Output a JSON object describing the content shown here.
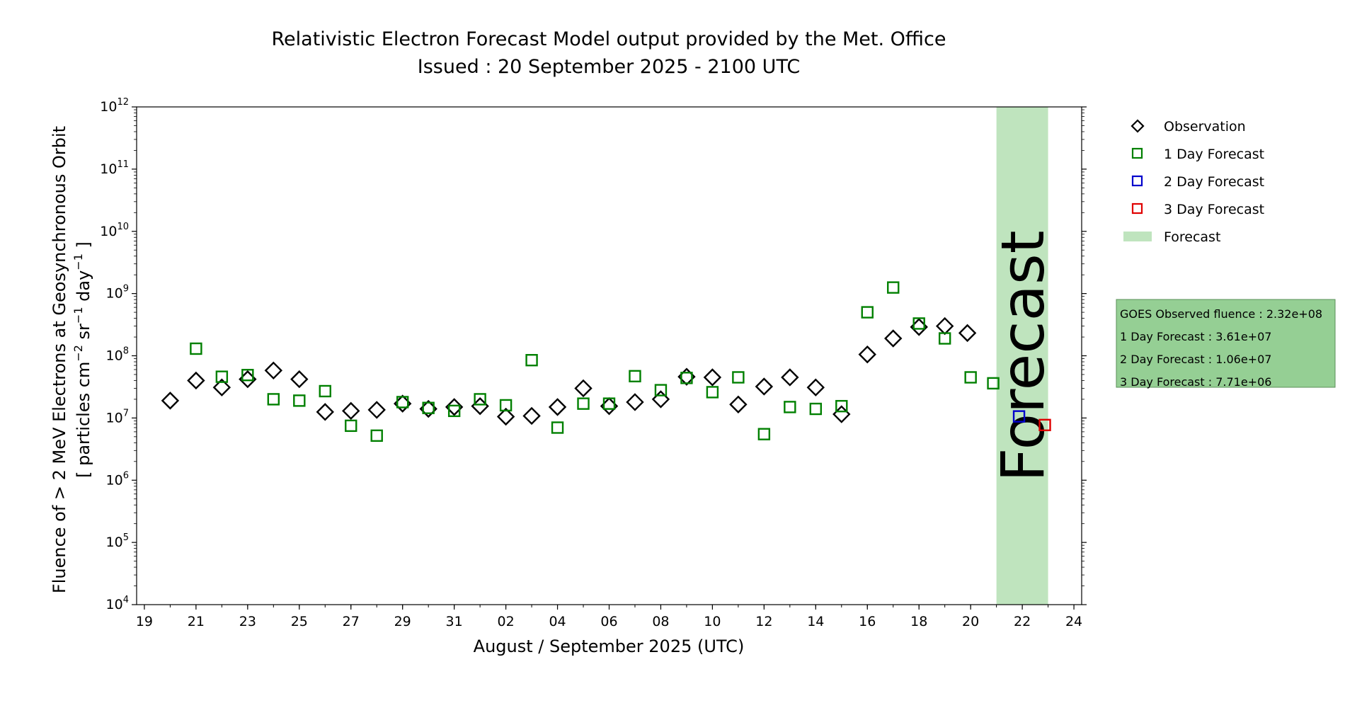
{
  "chart_data": {
    "type": "scatter",
    "title": "Relativistic Electron Forecast Model output provided by the Met. Office",
    "subtitle": "Issued : 20 September 2025 - 2100 UTC",
    "xlabel": "August / September 2025 (UTC)",
    "ylabel_line1": "Fluence of > 2 MeV Electrons at Geosynchronous Orbit",
    "ylabel_line2_parts": [
      "[ particles cm",
      "−2",
      " sr",
      "−1",
      " day",
      "−1",
      " ]"
    ],
    "y_scale": "log",
    "ylim": [
      10000,
      1000000000000
    ],
    "xlim": [
      "2025-08-18T16:48",
      "2025-09-24T07:12"
    ],
    "grid": false,
    "legend_position": "right",
    "x_ticks": [
      {
        "date": "2025-08-19",
        "label": "19"
      },
      {
        "date": "2025-08-21",
        "label": "21"
      },
      {
        "date": "2025-08-23",
        "label": "23"
      },
      {
        "date": "2025-08-25",
        "label": "25"
      },
      {
        "date": "2025-08-27",
        "label": "27"
      },
      {
        "date": "2025-08-29",
        "label": "29"
      },
      {
        "date": "2025-08-31",
        "label": "31"
      },
      {
        "date": "2025-09-02",
        "label": "02"
      },
      {
        "date": "2025-09-04",
        "label": "04"
      },
      {
        "date": "2025-09-06",
        "label": "06"
      },
      {
        "date": "2025-09-08",
        "label": "08"
      },
      {
        "date": "2025-09-10",
        "label": "10"
      },
      {
        "date": "2025-09-12",
        "label": "12"
      },
      {
        "date": "2025-09-14",
        "label": "14"
      },
      {
        "date": "2025-09-16",
        "label": "16"
      },
      {
        "date": "2025-09-18",
        "label": "18"
      },
      {
        "date": "2025-09-20",
        "label": "20"
      },
      {
        "date": "2025-09-22",
        "label": "22"
      },
      {
        "date": "2025-09-24",
        "label": "24"
      }
    ],
    "y_ticks": [
      {
        "value": 10000,
        "base": "10",
        "exp": "4"
      },
      {
        "value": 100000,
        "base": "10",
        "exp": "5"
      },
      {
        "value": 1000000,
        "base": "10",
        "exp": "6"
      },
      {
        "value": 10000000,
        "base": "10",
        "exp": "7"
      },
      {
        "value": 100000000,
        "base": "10",
        "exp": "8"
      },
      {
        "value": 1000000000,
        "base": "10",
        "exp": "9"
      },
      {
        "value": 10000000000,
        "base": "10",
        "exp": "10"
      },
      {
        "value": 100000000000,
        "base": "10",
        "exp": "11"
      },
      {
        "value": 1000000000000,
        "base": "10",
        "exp": "12"
      }
    ],
    "forecast_band": {
      "start": "2025-09-21T00:00",
      "end": "2025-09-23T00:00",
      "label": "Forecast",
      "color": "#bfe4be",
      "text_color": "#8a9e88"
    },
    "series": [
      {
        "name": "Observation",
        "marker": "diamond",
        "color": "#000000",
        "points": [
          {
            "x": "2025-08-20",
            "y": 19000000
          },
          {
            "x": "2025-08-21",
            "y": 40000000
          },
          {
            "x": "2025-08-22",
            "y": 31000000
          },
          {
            "x": "2025-08-23",
            "y": 42000000
          },
          {
            "x": "2025-08-24",
            "y": 58000000
          },
          {
            "x": "2025-08-25",
            "y": 42000000
          },
          {
            "x": "2025-08-26",
            "y": 12500000
          },
          {
            "x": "2025-08-27",
            "y": 13000000
          },
          {
            "x": "2025-08-28",
            "y": 13500000
          },
          {
            "x": "2025-08-29",
            "y": 17000000
          },
          {
            "x": "2025-08-30",
            "y": 14000000
          },
          {
            "x": "2025-08-31",
            "y": 15000000
          },
          {
            "x": "2025-09-01",
            "y": 15500000
          },
          {
            "x": "2025-09-02",
            "y": 10500000
          },
          {
            "x": "2025-09-03",
            "y": 10800000
          },
          {
            "x": "2025-09-04",
            "y": 15000000
          },
          {
            "x": "2025-09-05",
            "y": 30000000
          },
          {
            "x": "2025-09-06",
            "y": 15500000
          },
          {
            "x": "2025-09-07",
            "y": 18000000
          },
          {
            "x": "2025-09-08",
            "y": 20000000
          },
          {
            "x": "2025-09-09",
            "y": 46000000
          },
          {
            "x": "2025-09-10",
            "y": 45000000
          },
          {
            "x": "2025-09-11",
            "y": 16500000
          },
          {
            "x": "2025-09-12",
            "y": 32000000
          },
          {
            "x": "2025-09-13",
            "y": 45000000
          },
          {
            "x": "2025-09-14",
            "y": 31000000
          },
          {
            "x": "2025-09-15",
            "y": 11500000
          },
          {
            "x": "2025-09-16",
            "y": 105000000
          },
          {
            "x": "2025-09-17",
            "y": 190000000
          },
          {
            "x": "2025-09-18",
            "y": 290000000
          },
          {
            "x": "2025-09-19",
            "y": 300000000
          },
          {
            "x": "2025-09-19T21:00",
            "y": 232000000
          }
        ]
      },
      {
        "name": "1 Day Forecast",
        "marker": "square",
        "color": "#008000",
        "points": [
          {
            "x": "2025-08-21",
            "y": 130000000
          },
          {
            "x": "2025-08-22",
            "y": 46000000
          },
          {
            "x": "2025-08-23",
            "y": 49000000
          },
          {
            "x": "2025-08-24",
            "y": 20000000
          },
          {
            "x": "2025-08-25",
            "y": 19000000
          },
          {
            "x": "2025-08-26",
            "y": 27000000
          },
          {
            "x": "2025-08-27",
            "y": 7500000
          },
          {
            "x": "2025-08-28",
            "y": 5200000
          },
          {
            "x": "2025-08-29",
            "y": 18000000
          },
          {
            "x": "2025-08-30",
            "y": 14500000
          },
          {
            "x": "2025-08-31",
            "y": 13000000
          },
          {
            "x": "2025-09-01",
            "y": 20000000
          },
          {
            "x": "2025-09-02",
            "y": 16000000
          },
          {
            "x": "2025-09-03",
            "y": 85000000
          },
          {
            "x": "2025-09-04",
            "y": 7000000
          },
          {
            "x": "2025-09-05",
            "y": 17000000
          },
          {
            "x": "2025-09-06",
            "y": 17000000
          },
          {
            "x": "2025-09-07",
            "y": 47000000
          },
          {
            "x": "2025-09-08",
            "y": 28000000
          },
          {
            "x": "2025-09-09",
            "y": 44000000
          },
          {
            "x": "2025-09-10",
            "y": 26000000
          },
          {
            "x": "2025-09-11",
            "y": 45000000
          },
          {
            "x": "2025-09-12",
            "y": 5500000
          },
          {
            "x": "2025-09-13",
            "y": 15000000
          },
          {
            "x": "2025-09-14",
            "y": 14000000
          },
          {
            "x": "2025-09-15",
            "y": 15500000
          },
          {
            "x": "2025-09-16",
            "y": 500000000
          },
          {
            "x": "2025-09-17",
            "y": 1250000000
          },
          {
            "x": "2025-09-18",
            "y": 330000000
          },
          {
            "x": "2025-09-19",
            "y": 190000000
          },
          {
            "x": "2025-09-20",
            "y": 45000000
          },
          {
            "x": "2025-09-20T21:00",
            "y": 36100000
          }
        ]
      },
      {
        "name": "2 Day Forecast",
        "marker": "square",
        "color": "#0000cc",
        "points": [
          {
            "x": "2025-09-21T21:00",
            "y": 10600000
          }
        ]
      },
      {
        "name": "3 Day Forecast",
        "marker": "square",
        "color": "#e00000",
        "points": [
          {
            "x": "2025-09-22T21:00",
            "y": 7710000
          }
        ]
      }
    ],
    "legend": [
      {
        "label": "Observation",
        "marker": "diamond",
        "color": "#000000"
      },
      {
        "label": "1 Day Forecast",
        "marker": "square",
        "color": "#008000"
      },
      {
        "label": "2 Day Forecast",
        "marker": "square",
        "color": "#0000cc"
      },
      {
        "label": "3 Day Forecast",
        "marker": "square",
        "color": "#e00000"
      },
      {
        "label": "Forecast",
        "marker": "band",
        "color": "#bfe4be"
      }
    ],
    "info_box": {
      "background": "#95cf94",
      "lines": [
        "GOES Observed fluence : 2.32e+08",
        "1 Day Forecast : 3.61e+07",
        "2 Day Forecast : 1.06e+07",
        "3 Day Forecast : 7.71e+06"
      ]
    }
  }
}
